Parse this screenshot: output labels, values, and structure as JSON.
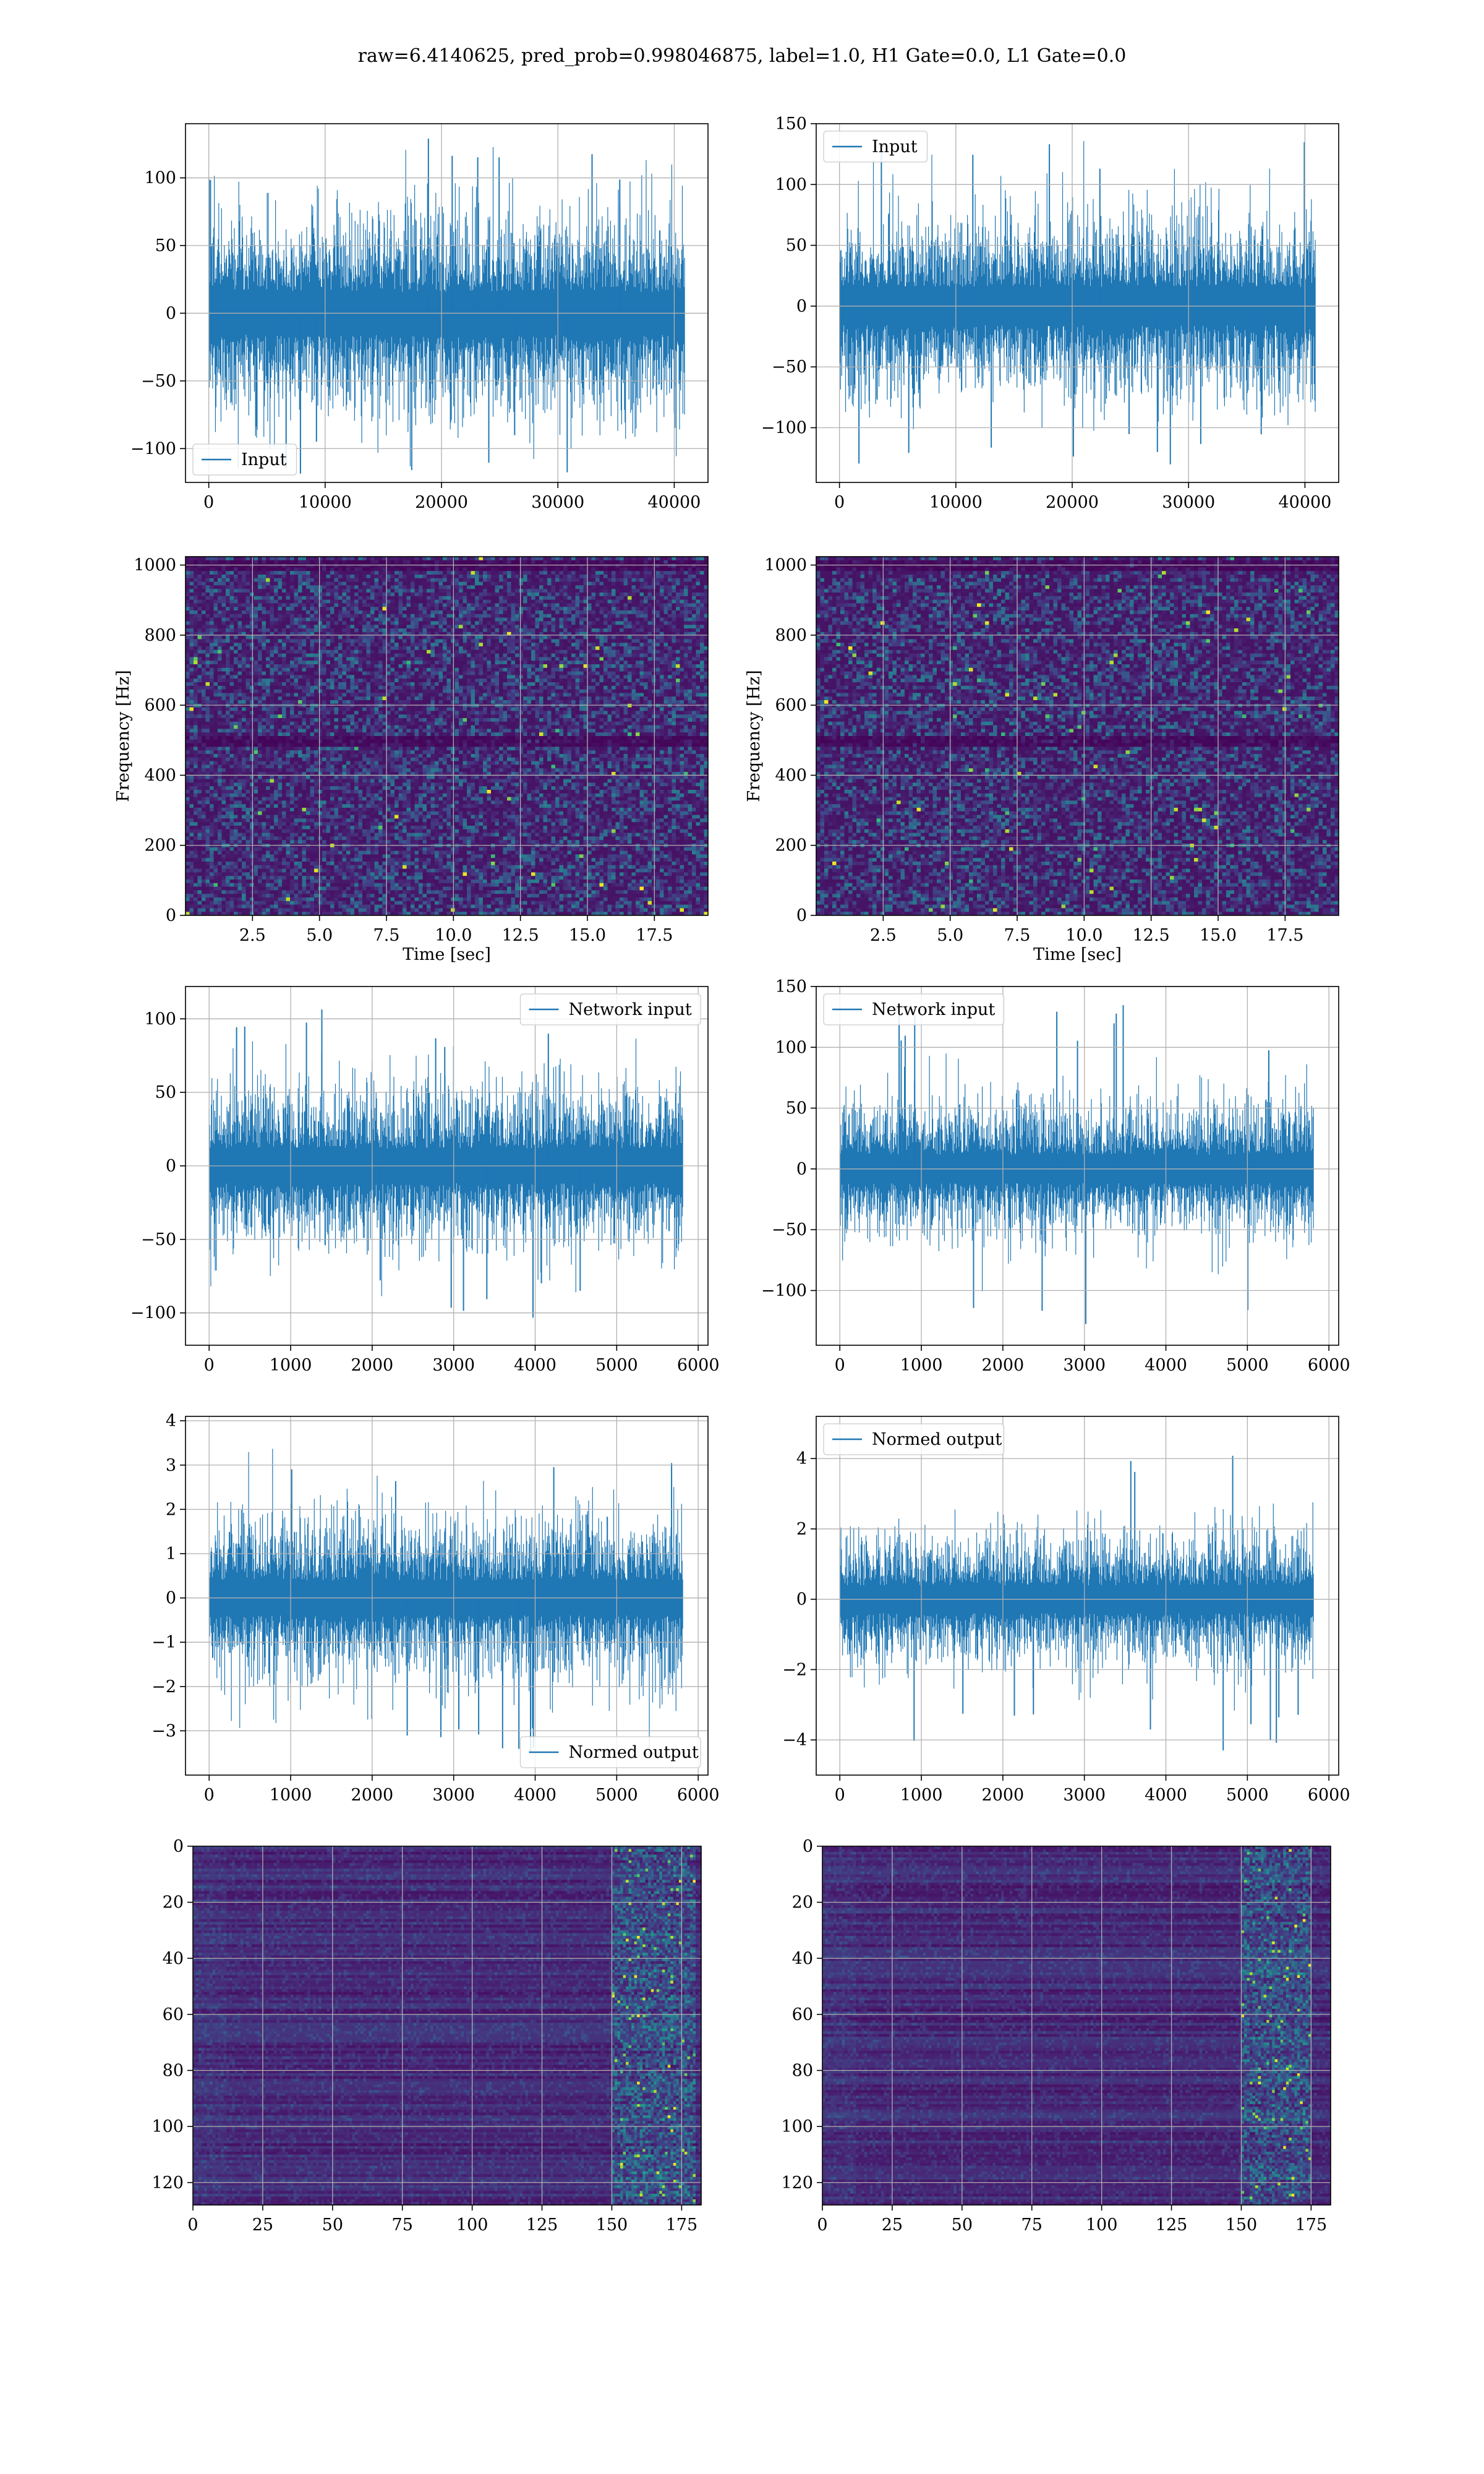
{
  "figure": {
    "title": "raw=6.4140625, pred_prob=0.998046875, label=1.0, H1 Gate=0.0, L1 Gate=0.0",
    "colors": {
      "line": "#1f77b4",
      "grid": "#b0b0b0",
      "viridis": [
        "#440154",
        "#482878",
        "#3e4989",
        "#31688e",
        "#26828e",
        "#1f9e89",
        "#35b779",
        "#6ece58",
        "#b5de2b",
        "#fde725"
      ]
    }
  },
  "chart_data": [
    {
      "id": "input-h1",
      "type": "line",
      "title": "",
      "xlabel": "",
      "ylabel": "",
      "xlim": [
        -2000,
        42900
      ],
      "ylim": [
        -125,
        140
      ],
      "xticks": [
        0,
        10000,
        20000,
        30000,
        40000
      ],
      "yticks": [
        -100,
        -50,
        0,
        50,
        100
      ],
      "xtick_labels": [
        "0",
        "10000",
        "20000",
        "30000",
        "40000"
      ],
      "ytick_labels": [
        "−100",
        "−50",
        "0",
        "50",
        "100"
      ],
      "grid": true,
      "legend_position": "lower-left",
      "series": [
        {
          "name": "Input",
          "x_range": [
            0,
            40959
          ],
          "n_points": 40960,
          "envelope": {
            "min": -122,
            "max": 132
          },
          "typical_band": [
            -60,
            60
          ]
        }
      ]
    },
    {
      "id": "input-l1",
      "type": "line",
      "title": "",
      "xlabel": "",
      "ylabel": "",
      "xlim": [
        -2000,
        42900
      ],
      "ylim": [
        -145,
        150
      ],
      "xticks": [
        0,
        10000,
        20000,
        30000,
        40000
      ],
      "yticks": [
        -100,
        -50,
        0,
        50,
        100,
        150
      ],
      "xtick_labels": [
        "0",
        "10000",
        "20000",
        "30000",
        "40000"
      ],
      "ytick_labels": [
        "−100",
        "−50",
        "0",
        "50",
        "100",
        "150"
      ],
      "grid": true,
      "legend_position": "upper-left",
      "series": [
        {
          "name": "Input",
          "x_range": [
            0,
            40959
          ],
          "n_points": 40960,
          "envelope": {
            "min": -131,
            "max": 136
          },
          "typical_band": [
            -60,
            60
          ]
        }
      ]
    },
    {
      "id": "spectrogram-h1",
      "type": "heatmap",
      "title": "",
      "xlabel": "Time [sec]",
      "ylabel": "Frequency [Hz]",
      "xlim": [
        0,
        19.5
      ],
      "ylim": [
        0,
        1024
      ],
      "xticks": [
        2.5,
        5.0,
        7.5,
        10.0,
        12.5,
        15.0,
        17.5
      ],
      "yticks": [
        0,
        200,
        400,
        600,
        800,
        1000
      ],
      "xtick_labels": [
        "2.5",
        "5.0",
        "7.5",
        "10.0",
        "12.5",
        "15.0",
        "17.5"
      ],
      "ytick_labels": [
        "0",
        "200",
        "400",
        "600",
        "800",
        "1000"
      ],
      "grid": true,
      "colormap": "viridis",
      "dark_bands_hz": [
        500,
        1000
      ]
    },
    {
      "id": "spectrogram-l1",
      "type": "heatmap",
      "title": "",
      "xlabel": "Time [sec]",
      "ylabel": "Frequency [Hz]",
      "xlim": [
        0,
        19.5
      ],
      "ylim": [
        0,
        1024
      ],
      "xticks": [
        2.5,
        5.0,
        7.5,
        10.0,
        12.5,
        15.0,
        17.5
      ],
      "yticks": [
        0,
        200,
        400,
        600,
        800,
        1000
      ],
      "xtick_labels": [
        "2.5",
        "5.0",
        "7.5",
        "10.0",
        "12.5",
        "15.0",
        "17.5"
      ],
      "ytick_labels": [
        "0",
        "200",
        "400",
        "600",
        "800",
        "1000"
      ],
      "grid": true,
      "colormap": "viridis",
      "dark_bands_hz": [
        500,
        1000
      ]
    },
    {
      "id": "network-input-h1",
      "type": "line",
      "title": "",
      "xlabel": "",
      "ylabel": "",
      "xlim": [
        -290,
        6120
      ],
      "ylim": [
        -122,
        122
      ],
      "xticks": [
        0,
        1000,
        2000,
        3000,
        4000,
        5000,
        6000
      ],
      "yticks": [
        -100,
        -50,
        0,
        50,
        100
      ],
      "xtick_labels": [
        "0",
        "1000",
        "2000",
        "3000",
        "4000",
        "5000",
        "6000"
      ],
      "ytick_labels": [
        "−100",
        "−50",
        "0",
        "50",
        "100"
      ],
      "grid": true,
      "legend_position": "upper-right",
      "series": [
        {
          "name": "Network input",
          "x_range": [
            0,
            5823
          ],
          "n_points": 5824,
          "envelope": {
            "min": -110,
            "max": 114
          },
          "typical_band": [
            -45,
            45
          ]
        }
      ]
    },
    {
      "id": "network-input-l1",
      "type": "line",
      "title": "",
      "xlabel": "",
      "ylabel": "",
      "xlim": [
        -290,
        6120
      ],
      "ylim": [
        -145,
        150
      ],
      "xticks": [
        0,
        1000,
        2000,
        3000,
        4000,
        5000,
        6000
      ],
      "yticks": [
        -100,
        -50,
        0,
        50,
        100,
        150
      ],
      "xtick_labels": [
        "0",
        "1000",
        "2000",
        "3000",
        "4000",
        "5000",
        "6000"
      ],
      "ytick_labels": [
        "−100",
        "−50",
        "0",
        "50",
        "100",
        "150"
      ],
      "grid": true,
      "legend_position": "upper-left",
      "series": [
        {
          "name": "Network input",
          "x_range": [
            0,
            5823
          ],
          "n_points": 5824,
          "envelope": {
            "min": -128,
            "max": 136
          },
          "typical_band": [
            -45,
            45
          ]
        }
      ]
    },
    {
      "id": "normed-output-h1",
      "type": "line",
      "title": "",
      "xlabel": "",
      "ylabel": "",
      "xlim": [
        -290,
        6120
      ],
      "ylim": [
        -4.0,
        4.1
      ],
      "xticks": [
        0,
        1000,
        2000,
        3000,
        4000,
        5000,
        6000
      ],
      "yticks": [
        -3,
        -2,
        -1,
        0,
        1,
        2,
        3,
        4
      ],
      "xtick_labels": [
        "0",
        "1000",
        "2000",
        "3000",
        "4000",
        "5000",
        "6000"
      ],
      "ytick_labels": [
        "−3",
        "−2",
        "−1",
        "0",
        "1",
        "2",
        "3",
        "4"
      ],
      "grid": true,
      "legend_position": "lower-right",
      "series": [
        {
          "name": "Normed output",
          "x_range": [
            0,
            5823
          ],
          "n_points": 5824,
          "envelope": {
            "min": -3.6,
            "max": 3.5
          },
          "typical_band": [
            -1.5,
            1.5
          ]
        }
      ]
    },
    {
      "id": "normed-output-l1",
      "type": "line",
      "title": "",
      "xlabel": "",
      "ylabel": "",
      "xlim": [
        -290,
        6120
      ],
      "ylim": [
        -5.0,
        5.2
      ],
      "xticks": [
        0,
        1000,
        2000,
        3000,
        4000,
        5000,
        6000
      ],
      "yticks": [
        -4,
        -2,
        0,
        2,
        4
      ],
      "xtick_labels": [
        "0",
        "1000",
        "2000",
        "3000",
        "4000",
        "5000",
        "6000"
      ],
      "ytick_labels": [
        "−4",
        "−2",
        "0",
        "2",
        "4"
      ],
      "grid": true,
      "legend_position": "upper-left",
      "series": [
        {
          "name": "Normed output",
          "x_range": [
            0,
            5823
          ],
          "n_points": 5824,
          "envelope": {
            "min": -4.4,
            "max": 4.7
          },
          "typical_band": [
            -1.5,
            1.5
          ]
        }
      ]
    },
    {
      "id": "feature-map-h1",
      "type": "heatmap",
      "title": "",
      "xlabel": "",
      "ylabel": "",
      "xlim": [
        0,
        182
      ],
      "ylim": [
        128,
        0
      ],
      "xticks": [
        0,
        25,
        50,
        75,
        100,
        125,
        150,
        175
      ],
      "yticks": [
        0,
        20,
        40,
        60,
        80,
        100,
        120
      ],
      "xtick_labels": [
        "0",
        "25",
        "50",
        "75",
        "100",
        "125",
        "150",
        "175"
      ],
      "ytick_labels": [
        "0",
        "20",
        "40",
        "60",
        "80",
        "100",
        "120"
      ],
      "grid": true,
      "colormap": "viridis",
      "rows": 128,
      "cols": 182,
      "bright_column_range": [
        150,
        180
      ]
    },
    {
      "id": "feature-map-l1",
      "type": "heatmap",
      "title": "",
      "xlabel": "",
      "ylabel": "",
      "xlim": [
        0,
        182
      ],
      "ylim": [
        128,
        0
      ],
      "xticks": [
        0,
        25,
        50,
        75,
        100,
        125,
        150,
        175
      ],
      "yticks": [
        0,
        20,
        40,
        60,
        80,
        100,
        120
      ],
      "xtick_labels": [
        "0",
        "25",
        "50",
        "75",
        "100",
        "125",
        "150",
        "175"
      ],
      "ytick_labels": [
        "0",
        "20",
        "40",
        "60",
        "80",
        "100",
        "120"
      ],
      "grid": true,
      "colormap": "viridis",
      "rows": 128,
      "cols": 182,
      "bright_column_range": [
        150,
        175
      ]
    }
  ]
}
